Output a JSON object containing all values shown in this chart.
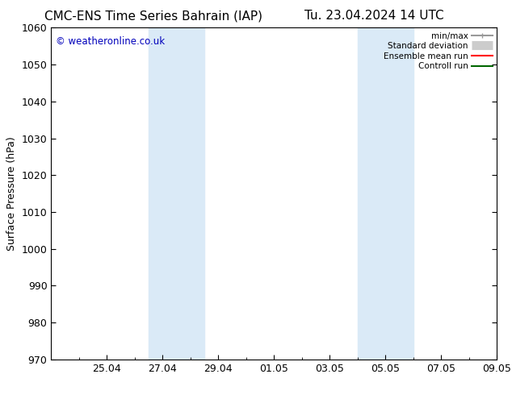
{
  "title_left": "CMC-ENS Time Series Bahrain (IAP)",
  "title_right": "Tu. 23.04.2024 14 UTC",
  "ylabel": "Surface Pressure (hPa)",
  "ylim": [
    970,
    1060
  ],
  "yticks": [
    970,
    980,
    990,
    1000,
    1010,
    1020,
    1030,
    1040,
    1050,
    1060
  ],
  "xtick_labels": [
    "25.04",
    "27.04",
    "29.04",
    "01.05",
    "03.05",
    "05.05",
    "07.05",
    "09.05"
  ],
  "xtick_positions": [
    2,
    4,
    6,
    8,
    10,
    12,
    14,
    16
  ],
  "xlim": [
    0,
    16
  ],
  "shaded_bands": [
    {
      "xmin": 3.5,
      "xmax": 5.5
    },
    {
      "xmin": 11.0,
      "xmax": 13.0
    }
  ],
  "shade_color": "#daeaf7",
  "watermark_text": "© weatheronline.co.uk",
  "watermark_color": "#0000bb",
  "legend_items": [
    {
      "label": "min/max",
      "color": "#999999",
      "lw": 1.5,
      "style": "line_with_caps"
    },
    {
      "label": "Standard deviation",
      "color": "#cccccc",
      "lw": 8,
      "style": "thick"
    },
    {
      "label": "Ensemble mean run",
      "color": "#ff0000",
      "lw": 1.5,
      "style": "line"
    },
    {
      "label": "Controll run",
      "color": "#006600",
      "lw": 1.5,
      "style": "line"
    }
  ],
  "bg_color": "#ffffff",
  "tick_color": "#000000",
  "font_size": 9,
  "title_fontsize": 11
}
